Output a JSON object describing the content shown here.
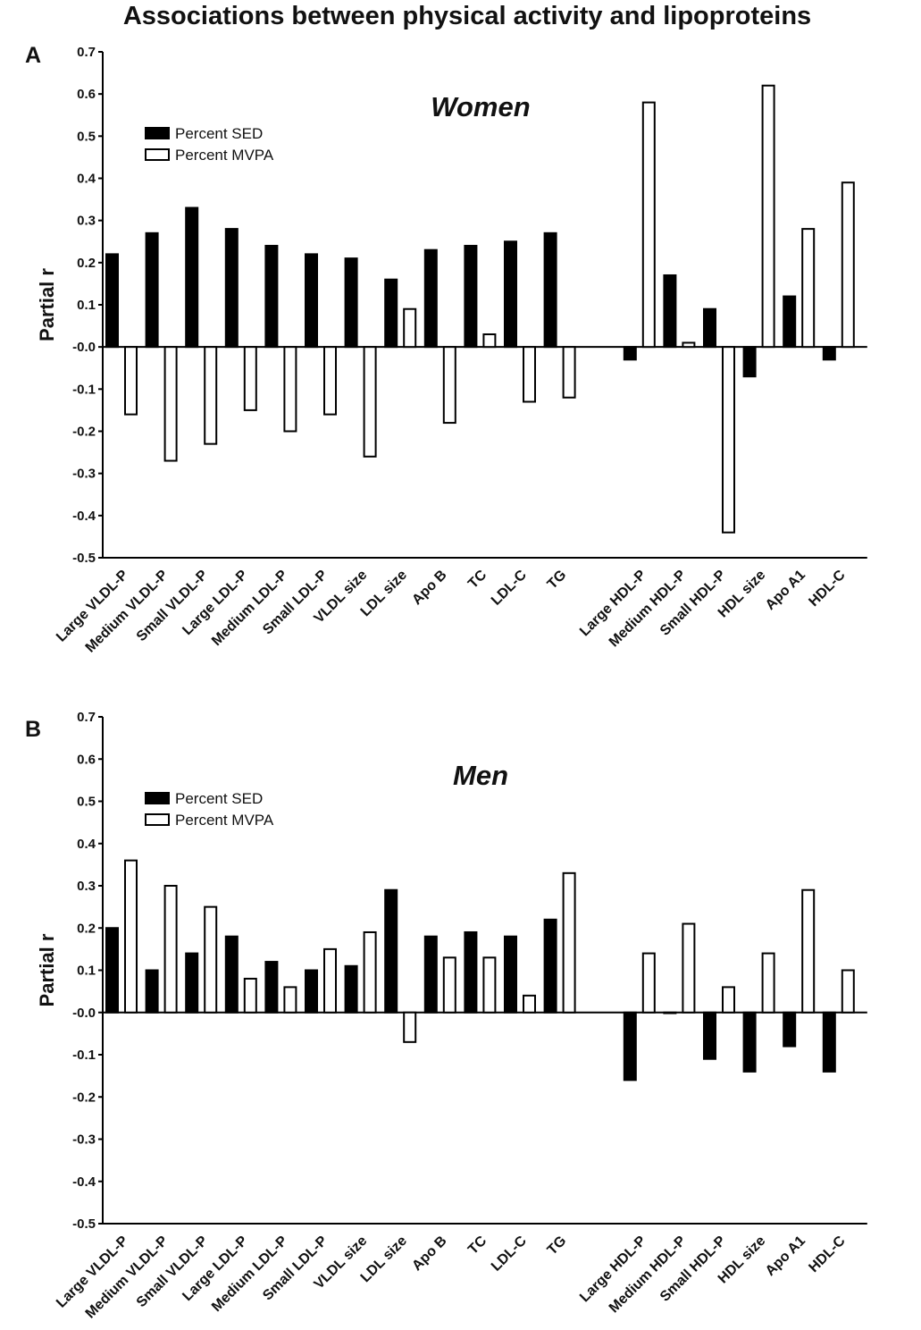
{
  "title": "Associations between physical activity and lipoproteins",
  "chart_data": [
    {
      "panel_label": "A",
      "title": "Women",
      "type": "bar",
      "ylabel": "Partial r",
      "ylim": [
        -0.5,
        0.7
      ],
      "yticks": [
        "0.7",
        "0.6",
        "0.5",
        "0.4",
        "0.3",
        "0.2",
        "0.1",
        "-0.0",
        "-0.1",
        "-0.2",
        "-0.3",
        "-0.4",
        "-0.5"
      ],
      "legend_position": "top-left",
      "grid": false,
      "categories": [
        "Large VLDL-P",
        "Medium VLDL-P",
        "Small VLDL-P",
        "Large LDL-P",
        "Medium LDL-P",
        "Small LDL-P",
        "VLDL size",
        "LDL size",
        "Apo B",
        "TC",
        "LDL-C",
        "TG",
        "",
        "Large HDL-P",
        "Medium HDL-P",
        "Small HDL-P",
        "HDL size",
        "Apo A1",
        "HDL-C"
      ],
      "series": [
        {
          "name": "Percent SED",
          "color": "#000000",
          "values": [
            0.22,
            0.27,
            0.33,
            0.28,
            0.24,
            0.22,
            0.21,
            0.16,
            0.23,
            0.24,
            0.25,
            0.27,
            null,
            -0.03,
            0.17,
            0.09,
            -0.07,
            0.12,
            -0.03
          ]
        },
        {
          "name": "Percent MVPA",
          "color": "#ffffff",
          "values": [
            -0.16,
            -0.27,
            -0.23,
            -0.15,
            -0.2,
            -0.16,
            -0.26,
            0.09,
            -0.18,
            0.03,
            -0.13,
            -0.12,
            null,
            0.58,
            0.01,
            -0.44,
            0.62,
            0.28,
            0.39
          ]
        }
      ]
    },
    {
      "panel_label": "B",
      "title": "Men",
      "type": "bar",
      "ylabel": "Partial r",
      "ylim": [
        -0.5,
        0.7
      ],
      "yticks": [
        "0.7",
        "0.6",
        "0.5",
        "0.4",
        "0.3",
        "0.2",
        "0.1",
        "-0.0",
        "-0.1",
        "-0.2",
        "-0.3",
        "-0.4",
        "-0.5"
      ],
      "legend_position": "top-left",
      "grid": false,
      "categories": [
        "Large VLDL-P",
        "Medium VLDL-P",
        "Small VLDL-P",
        "Large LDL-P",
        "Medium LDL-P",
        "Small LDL-P",
        "VLDL size",
        "LDL size",
        "Apo B",
        "TC",
        "LDL-C",
        "TG",
        "",
        "Large HDL-P",
        "Medium HDL-P",
        "Small HDL-P",
        "HDL size",
        "Apo A1",
        "HDL-C"
      ],
      "series": [
        {
          "name": "Percent SED",
          "color": "#000000",
          "values": [
            0.2,
            0.1,
            0.14,
            0.18,
            0.12,
            0.1,
            0.11,
            0.29,
            0.18,
            0.19,
            0.18,
            0.22,
            null,
            -0.16,
            0.0,
            -0.11,
            -0.14,
            -0.08,
            -0.14
          ]
        },
        {
          "name": "Percent MVPA",
          "color": "#ffffff",
          "values": [
            0.36,
            0.3,
            0.25,
            0.08,
            0.06,
            0.15,
            0.19,
            -0.07,
            0.13,
            0.13,
            0.04,
            0.33,
            null,
            0.14,
            0.21,
            0.06,
            0.14,
            0.29,
            0.1
          ]
        }
      ]
    }
  ]
}
